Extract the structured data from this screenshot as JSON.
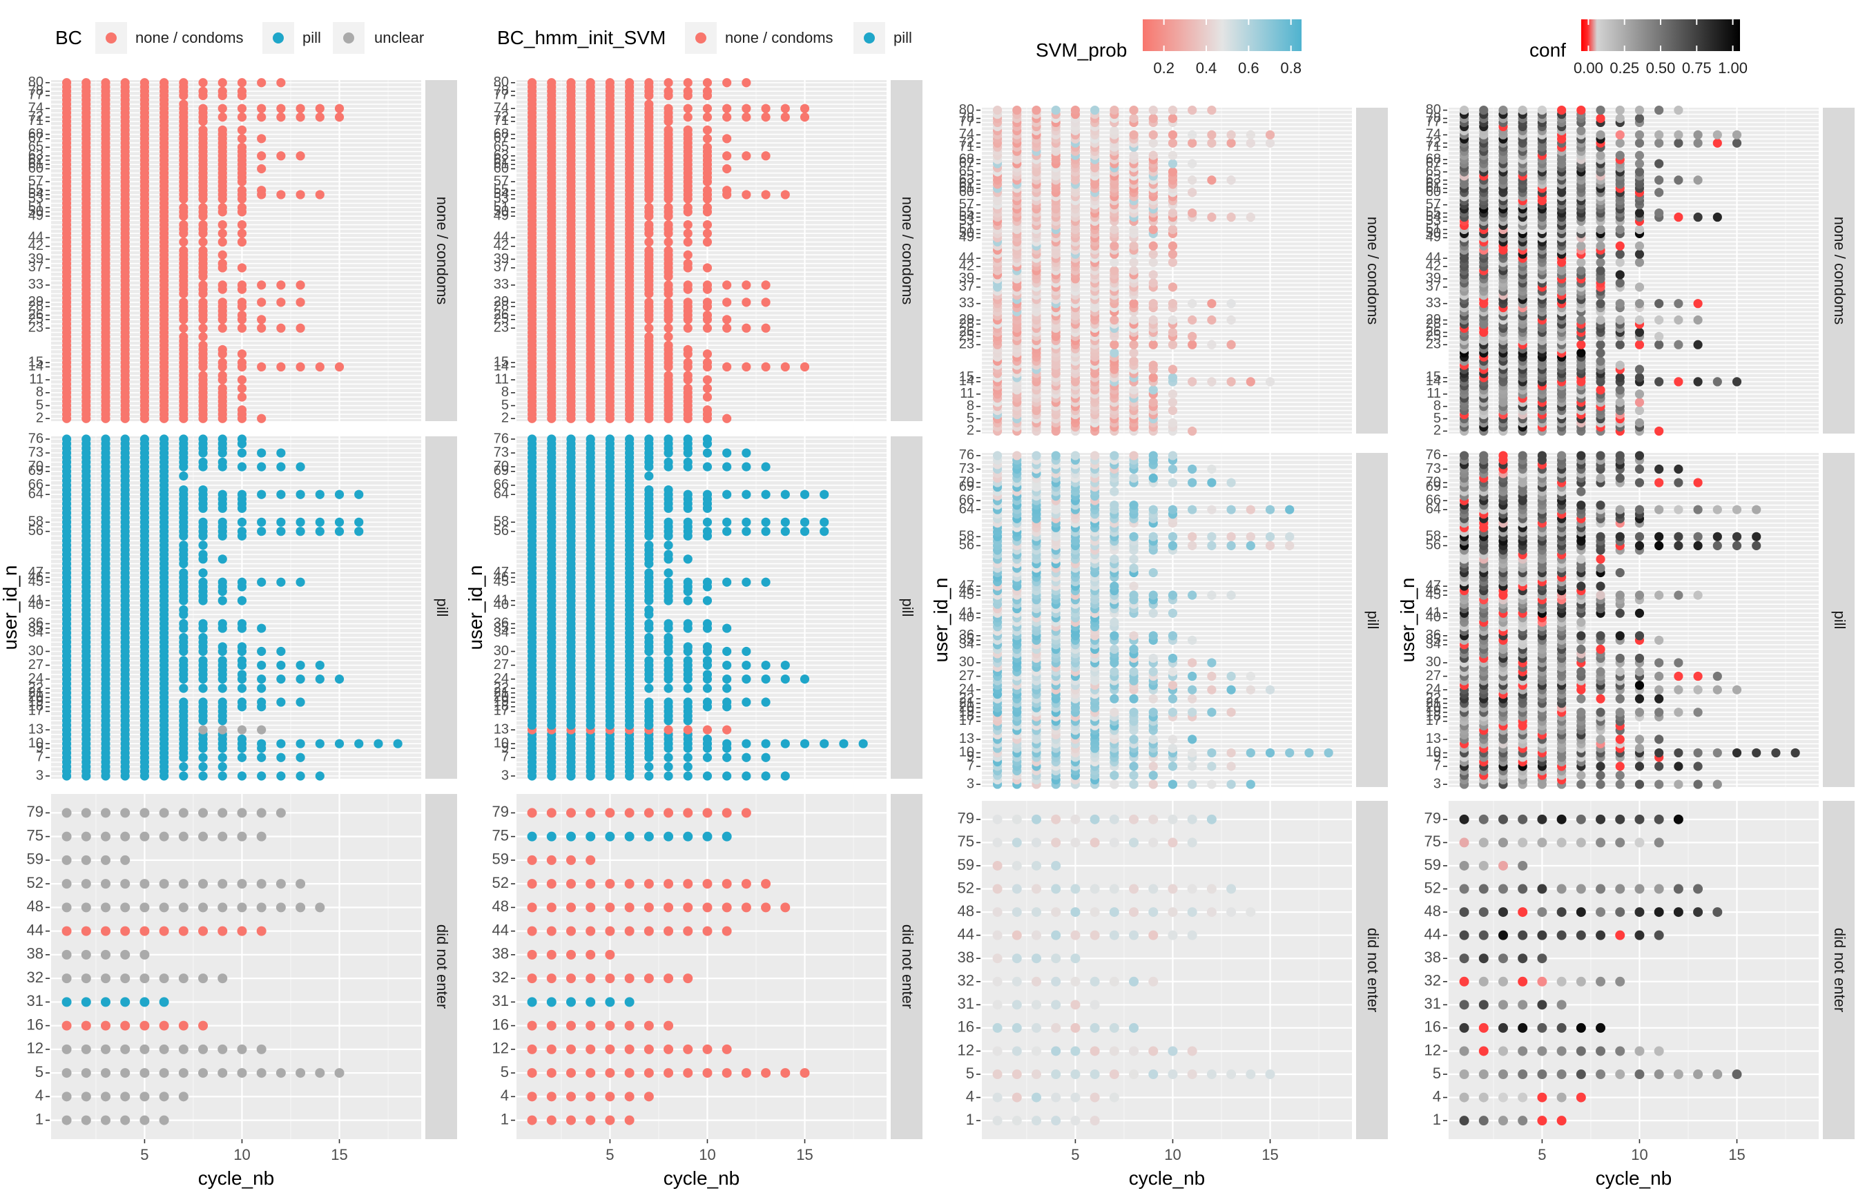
{
  "x_axis": {
    "label": "cycle_nb",
    "ticks": [
      5,
      10,
      15
    ],
    "range": [
      0.2,
      19.2
    ]
  },
  "y_axis_label": "user_id_n",
  "facets": [
    {
      "label": "none / condoms",
      "users": [
        2,
        3,
        4,
        5,
        6,
        7,
        8,
        9,
        10,
        11,
        12,
        13,
        14,
        15,
        16,
        17,
        18,
        19,
        20,
        21,
        22,
        23,
        24,
        25,
        26,
        27,
        28,
        29,
        30,
        31,
        32,
        33,
        34,
        35,
        36,
        37,
        38,
        39,
        40,
        41,
        42,
        43,
        44,
        45,
        46,
        47,
        48,
        49,
        50,
        51,
        52,
        53,
        54,
        55,
        56,
        57,
        58,
        59,
        60,
        61,
        62,
        63,
        64,
        65,
        66,
        67,
        68,
        69,
        70,
        71,
        72,
        73,
        74,
        75,
        76,
        77,
        78,
        79,
        80
      ],
      "tick_labels": [
        "2",
        "5",
        "8",
        "11",
        "14",
        "15",
        "23",
        "25",
        "26",
        "28",
        "29",
        "33",
        "37",
        "39",
        "42",
        "44",
        "49",
        "50",
        "51",
        "53",
        "54",
        "55",
        "57",
        "60",
        "61",
        "62",
        "63",
        "65",
        "67",
        "68",
        "71",
        "72",
        "74",
        "77",
        "78",
        "80"
      ]
    },
    {
      "label": "pill",
      "users": [
        3,
        4,
        5,
        6,
        7,
        8,
        9,
        10,
        11,
        12,
        13,
        14,
        15,
        16,
        17,
        18,
        19,
        20,
        21,
        22,
        23,
        24,
        25,
        26,
        27,
        28,
        29,
        30,
        31,
        32,
        33,
        34,
        35,
        36,
        37,
        38,
        39,
        40,
        41,
        42,
        43,
        44,
        45,
        46,
        47,
        48,
        49,
        50,
        51,
        52,
        53,
        54,
        55,
        56,
        57,
        58,
        59,
        60,
        61,
        62,
        63,
        64,
        65,
        66,
        67,
        68,
        69,
        70,
        71,
        72,
        73,
        74,
        75,
        76
      ],
      "tick_labels": [
        "3",
        "7",
        "9",
        "10",
        "13",
        "17",
        "18",
        "19",
        "20",
        "21",
        "22",
        "24",
        "27",
        "30",
        "34",
        "35",
        "36",
        "40",
        "41",
        "45",
        "46",
        "47",
        "56",
        "58",
        "64",
        "66",
        "69",
        "70",
        "73",
        "76"
      ]
    },
    {
      "label": "did not enter",
      "users": [
        1,
        4,
        5,
        12,
        16,
        31,
        32,
        38,
        44,
        48,
        52,
        59,
        75,
        79
      ],
      "tick_labels": [
        "1",
        "4",
        "5",
        "12",
        "16",
        "31",
        "32",
        "38",
        "44",
        "48",
        "52",
        "59",
        "75",
        "79"
      ]
    }
  ],
  "legends": {
    "bc": {
      "title": "BC",
      "entries": [
        {
          "label": "none / condoms",
          "color": "#F8766D"
        },
        {
          "label": "pill",
          "color": "#1FA6C9"
        },
        {
          "label": "unclear",
          "color": "#AAAAAA"
        }
      ]
    },
    "hmm": {
      "title": "BC_hmm_init_SVM",
      "entries": [
        {
          "label": "none / condoms",
          "color": "#F8766D"
        },
        {
          "label": "pill",
          "color": "#1FA6C9"
        }
      ]
    },
    "svm": {
      "title": "SVM_prob",
      "ticks": [
        "0.2",
        "0.4",
        "0.6",
        "0.8"
      ],
      "range": [
        0.1,
        0.85
      ],
      "low_color": "#F8766D",
      "mid_color": "#E4E4E4",
      "high_color": "#4FB3CF"
    },
    "conf": {
      "title": "conf",
      "ticks": [
        "0.00",
        "0.25",
        "0.50",
        "0.75",
        "1.00"
      ],
      "range": [
        -0.05,
        1.05
      ],
      "low_color": "#FF0000",
      "mid_color": "#D3D3D3",
      "high_color": "#000000"
    }
  },
  "chart_data": [
    {
      "type": "scatter",
      "title": "",
      "color_by": "BC",
      "xlabel": "cycle_nb",
      "ylabel": "user_id_n",
      "facets": [
        "none / condoms",
        "pill",
        "did not enter"
      ],
      "points_note": "one point per (user_id_n, cycle_nb); cycles 1..N per user, colored by BC",
      "cycles_per_user": {
        "none / condoms": {
          "2": 11,
          "5": 9,
          "8": 9,
          "11": 10,
          "14": 15,
          "15": 10,
          "23": 13,
          "25": 11,
          "26": 10,
          "28": 10,
          "29": 13,
          "33": 13,
          "37": 10,
          "39": 8,
          "42": 6,
          "44": 6,
          "49": 8,
          "50": 10,
          "51": 10,
          "53": 10,
          "54": 14,
          "55": 11,
          "57": 10,
          "60": 11,
          "61": 10,
          "62": 10,
          "63": 13,
          "65": 10,
          "67": 11,
          "68": 9,
          "71": 8,
          "72": 15,
          "74": 15,
          "77": 10,
          "78": 10,
          "80": 12
        },
        "pill": {
          "3": 14,
          "7": 13,
          "9": 11,
          "10": 18,
          "13": 11,
          "17": 9,
          "18": 11,
          "19": 13,
          "20": 6,
          "21": 6,
          "22": 11,
          "24": 15,
          "27": 14,
          "30": 12,
          "34": 6,
          "35": 11,
          "36": 10,
          "40": 6,
          "41": 10,
          "45": 13,
          "46": 7,
          "47": 8,
          "56": 16,
          "58": 16,
          "64": 16,
          "66": 6,
          "69": 6,
          "70": 13,
          "73": 12,
          "76": 10
        },
        "did not enter": {
          "1": 6,
          "4": 7,
          "5": 15,
          "12": 11,
          "16": 8,
          "31": 6,
          "32": 9,
          "38": 5,
          "44": 11,
          "48": 14,
          "52": 13,
          "59": 4,
          "75": 11,
          "79": 12
        }
      },
      "bc_did_not_enter": {
        "1": "unclear",
        "4": "unclear",
        "5": "unclear",
        "12": "unclear",
        "16": "none / condoms",
        "31": "pill",
        "32": "unclear",
        "38": "unclear",
        "44": "none / condoms",
        "48": "unclear",
        "52": "unclear",
        "59": "unclear",
        "75": "unclear",
        "79": "unclear"
      }
    },
    {
      "type": "scatter",
      "title": "",
      "color_by": "BC_hmm_init_SVM",
      "xlabel": "cycle_nb",
      "ylabel": "user_id_n",
      "hmm_did_not_enter": {
        "1": "none / condoms",
        "4": "none / condoms",
        "5": "none / condoms",
        "12": "none / condoms",
        "16": "none / condoms",
        "31": "pill",
        "32": "none / condoms",
        "38": "none / condoms",
        "44": "none / condoms",
        "48": "none / condoms",
        "52": "none / condoms",
        "59": "none / condoms",
        "75": "pill",
        "79": "none / condoms"
      },
      "hmm_pill_overrides": {
        "13": "none / condoms"
      }
    },
    {
      "type": "scatter",
      "title": "",
      "color_by": "SVM_prob",
      "xlabel": "cycle_nb",
      "ylabel": "user_id_n",
      "color_range": [
        0.1,
        0.85
      ]
    },
    {
      "type": "scatter",
      "title": "",
      "color_by": "conf",
      "xlabel": "cycle_nb",
      "ylabel": "user_id_n",
      "color_range": [
        0,
        1
      ]
    }
  ]
}
